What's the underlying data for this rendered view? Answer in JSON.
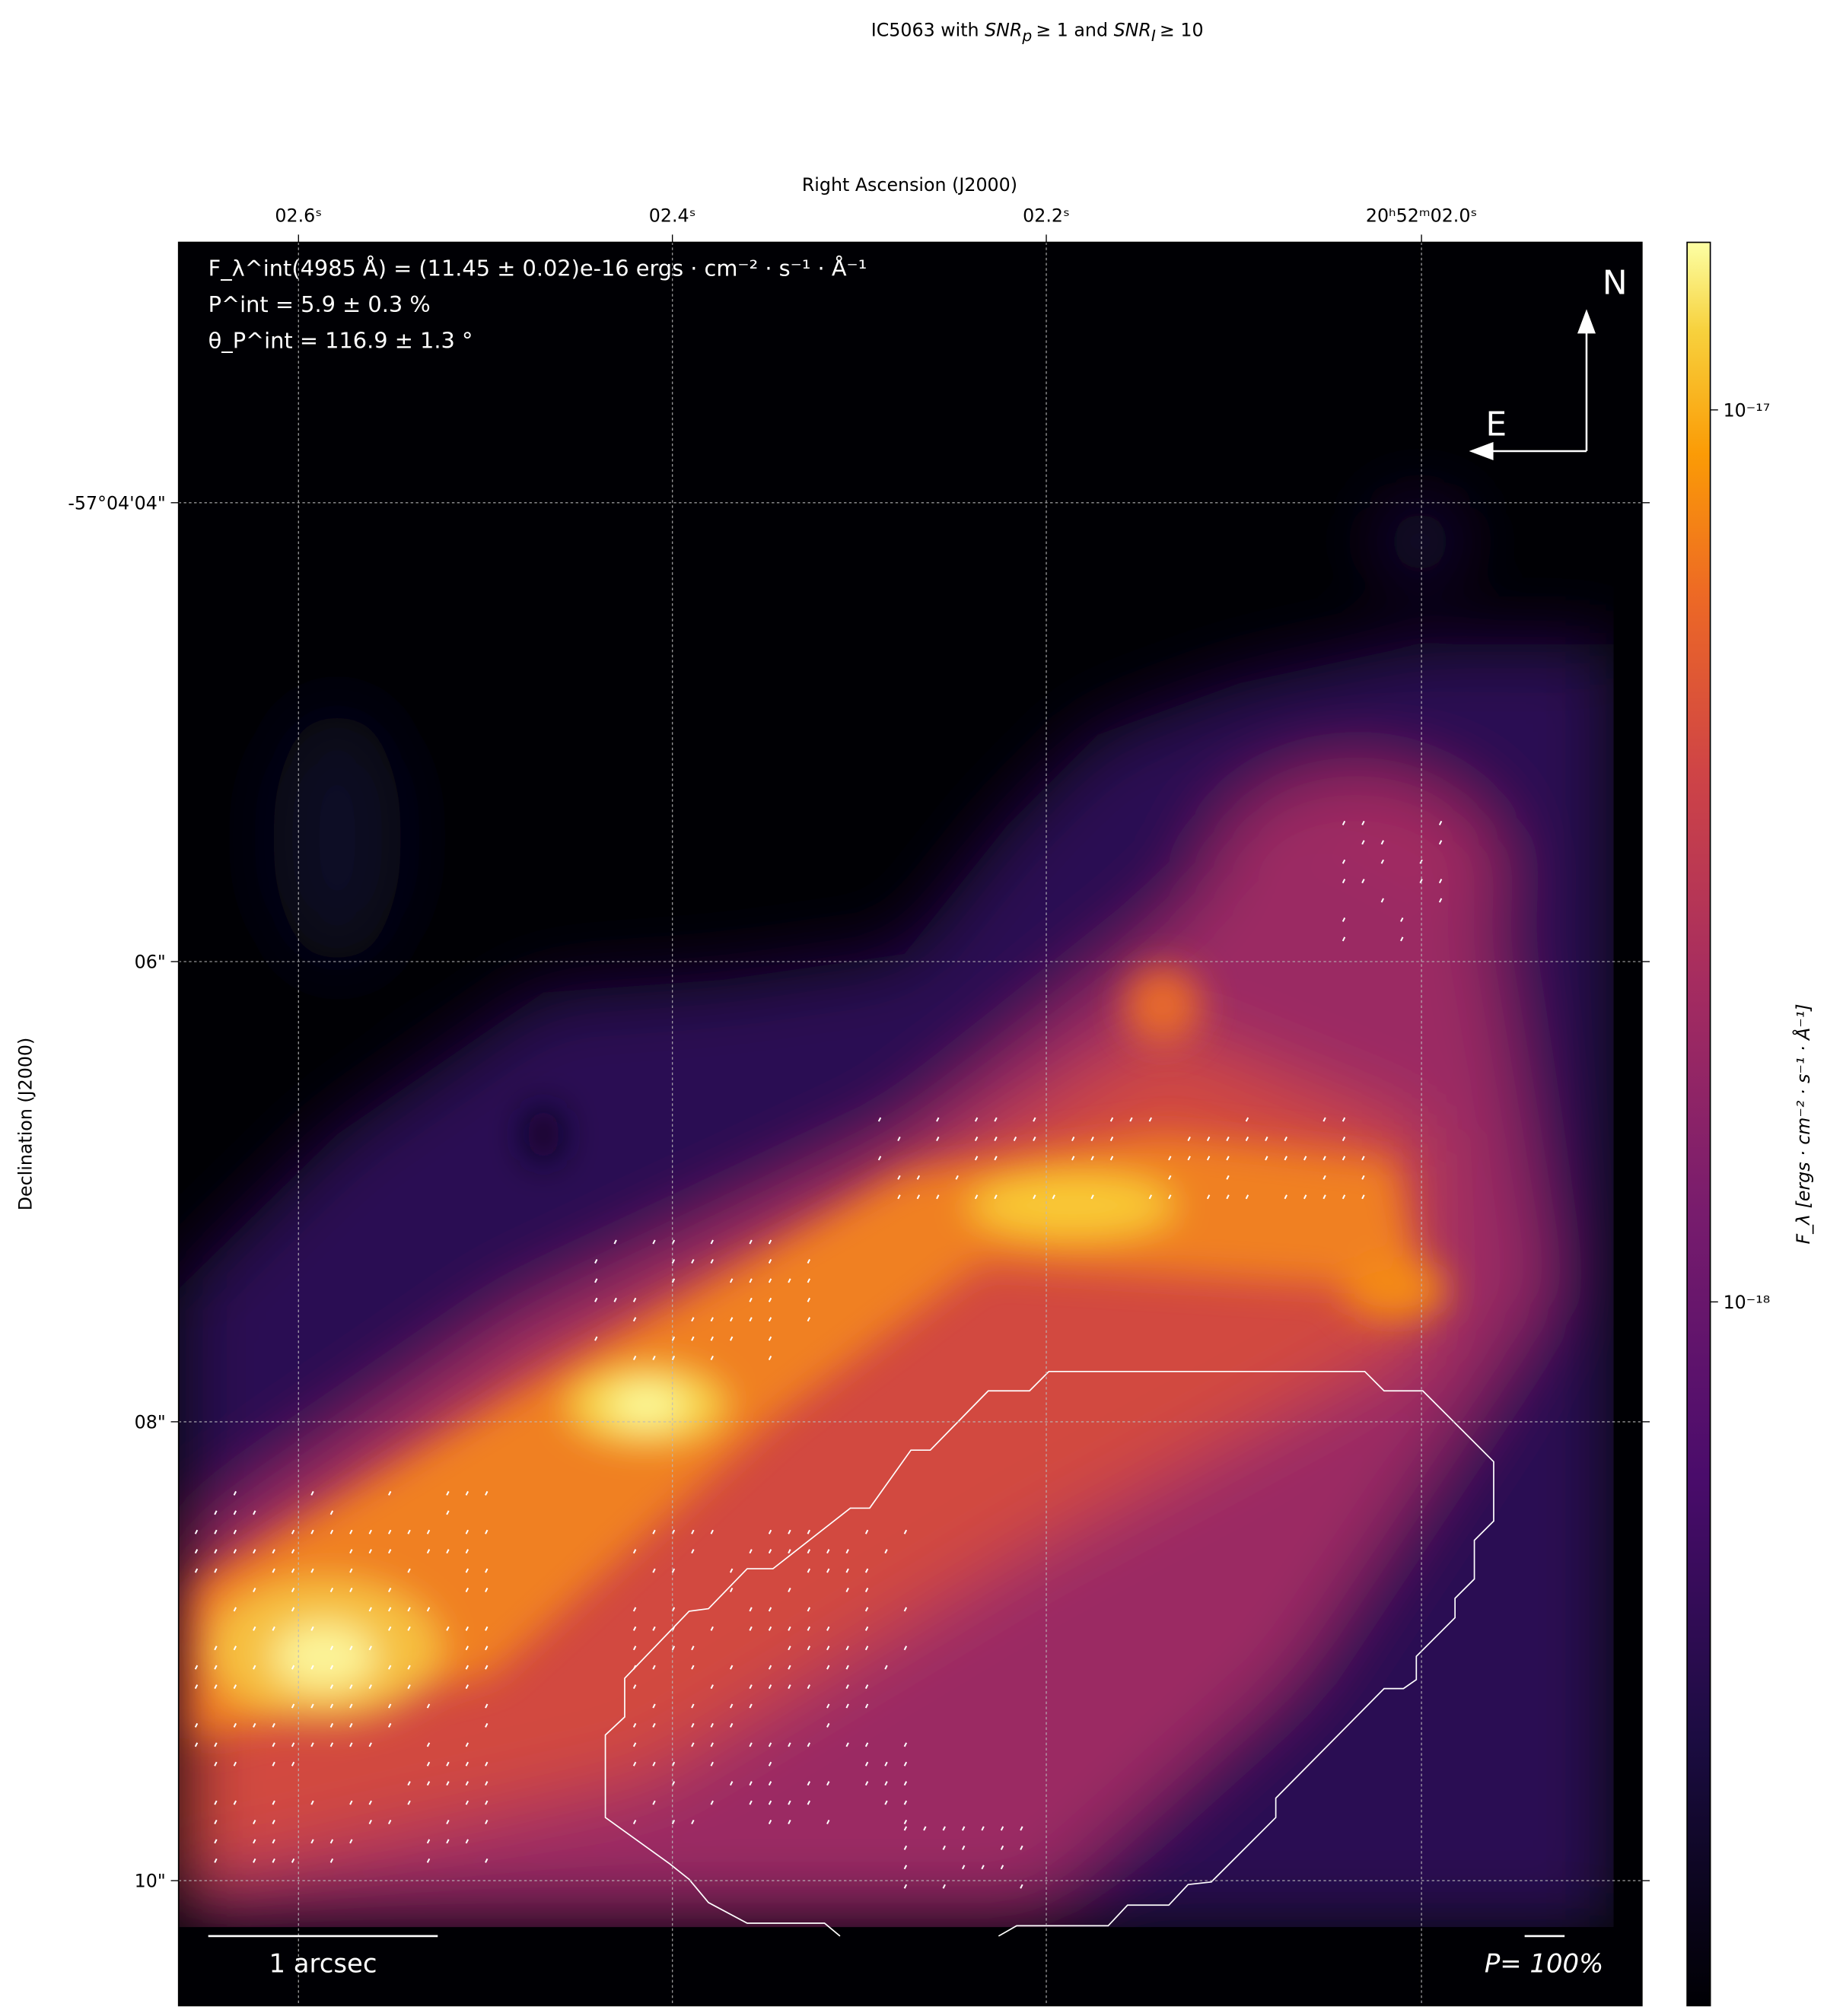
{
  "chart_data": {
    "type": "heatmap",
    "title": "IC5063 with SNR_p ≥ 1 and SNR_I ≥ 10",
    "title_parts": {
      "pre": "IC5063 with ",
      "snrp": "SNR",
      "snrp_sub": "p",
      "mid": "≥ 1 and ",
      "snri": "SNR",
      "snri_sub": "I",
      "post": "≥ 10"
    },
    "xlabel": "Right Ascension (J2000)",
    "ylabel": "Declination (J2000)",
    "xticks": [
      "02.6ˢ",
      "02.4ˢ",
      "02.2ˢ",
      "20ʰ52ᵐ02.0ˢ"
    ],
    "yticks": [
      "-57°04'04\"",
      "06\"",
      "08\"",
      "10\""
    ],
    "grid": true,
    "colormap": "inferno",
    "colorbar": {
      "label": "F_λ [ergs · cm⁻² · s⁻¹ · Å⁻¹]",
      "scale": "log",
      "ticks": [
        "10⁻¹⁷",
        "10⁻¹⁸"
      ],
      "tick_values": [
        1e-17,
        1e-18
      ]
    },
    "annotations": {
      "flux": "F_λ^int(4985 Å) = (11.45 ± 0.02)e-16 ergs · cm⁻² · s⁻¹ · Å⁻¹",
      "pol": "P^int = 5.9 ± 0.3 %",
      "angle": "θ_P^int = 116.9 ± 1.3 °",
      "north": "N",
      "east": "E",
      "scalebar": "1 arcsec",
      "pol_scale": "P= 100%"
    },
    "contour_color": "#ffffff",
    "vector_color": "#ffffff"
  }
}
